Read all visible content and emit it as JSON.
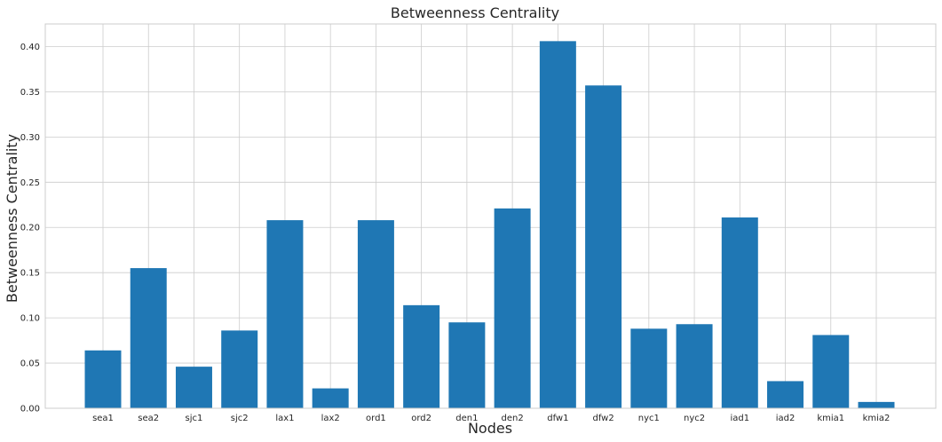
{
  "chart_data": {
    "type": "bar",
    "title": "Betweenness Centrality",
    "xlabel": "Nodes",
    "ylabel": "Betweenness Centrality",
    "categories": [
      "sea1",
      "sea2",
      "sjc1",
      "sjc2",
      "lax1",
      "lax2",
      "ord1",
      "ord2",
      "den1",
      "den2",
      "dfw1",
      "dfw2",
      "nyc1",
      "nyc2",
      "iad1",
      "iad2",
      "kmia1",
      "kmia2"
    ],
    "values": [
      0.064,
      0.155,
      0.046,
      0.086,
      0.208,
      0.022,
      0.208,
      0.114,
      0.095,
      0.221,
      0.406,
      0.357,
      0.088,
      0.093,
      0.211,
      0.03,
      0.081,
      0.007
    ],
    "ylim": [
      0,
      0.425
    ],
    "yticks": [
      "0.00",
      "0.05",
      "0.10",
      "0.15",
      "0.20",
      "0.25",
      "0.30",
      "0.35",
      "0.40"
    ],
    "grid": true,
    "colors": {
      "bar": "#1f77b4",
      "grid": "#cccccc",
      "frame": "#cccccc",
      "text": "#262626"
    }
  }
}
